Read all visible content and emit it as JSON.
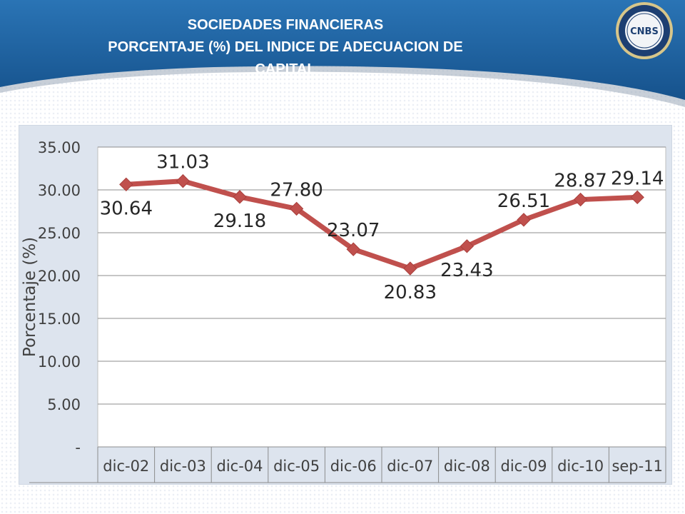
{
  "header": {
    "title_line1": "SOCIEDADES FINANCIERAS",
    "title_line2": "PORCENTAJE (%) DEL INDICE DE ADECUACION DE",
    "title_line3": "CAPITAL",
    "logo_text": "CNBS"
  },
  "colors": {
    "header_blue": "#1f5f9b",
    "line": "#c0504d",
    "plot_bg": "#dde4ee"
  },
  "chart_data": {
    "type": "line",
    "title": "",
    "xlabel": "",
    "ylabel": "Porcentaje (%)",
    "categories": [
      "dic-02",
      "dic-03",
      "dic-04",
      "dic-05",
      "dic-06",
      "dic-07",
      "dic-08",
      "dic-09",
      "dic-10",
      "sep-11"
    ],
    "series": [
      {
        "values": [
          30.64,
          31.03,
          29.18,
          27.8,
          23.07,
          20.83,
          23.43,
          26.51,
          28.87,
          29.14
        ]
      }
    ],
    "data_labels": [
      "30.64",
      "31.03",
      "29.18",
      "27.80",
      "23.07",
      "20.83",
      "23.43",
      "26.51",
      "28.87",
      "29.14"
    ],
    "label_position": [
      "below",
      "above",
      "below",
      "above",
      "above",
      "below",
      "below",
      "above",
      "above",
      "above"
    ],
    "ylim": [
      0,
      35
    ],
    "yticks": [
      0,
      5,
      10,
      15,
      20,
      25,
      30,
      35
    ],
    "ytick_labels": [
      "-",
      "5.00",
      "10.00",
      "15.00",
      "20.00",
      "25.00",
      "30.00",
      "35.00"
    ],
    "grid": true,
    "legend": "none"
  }
}
